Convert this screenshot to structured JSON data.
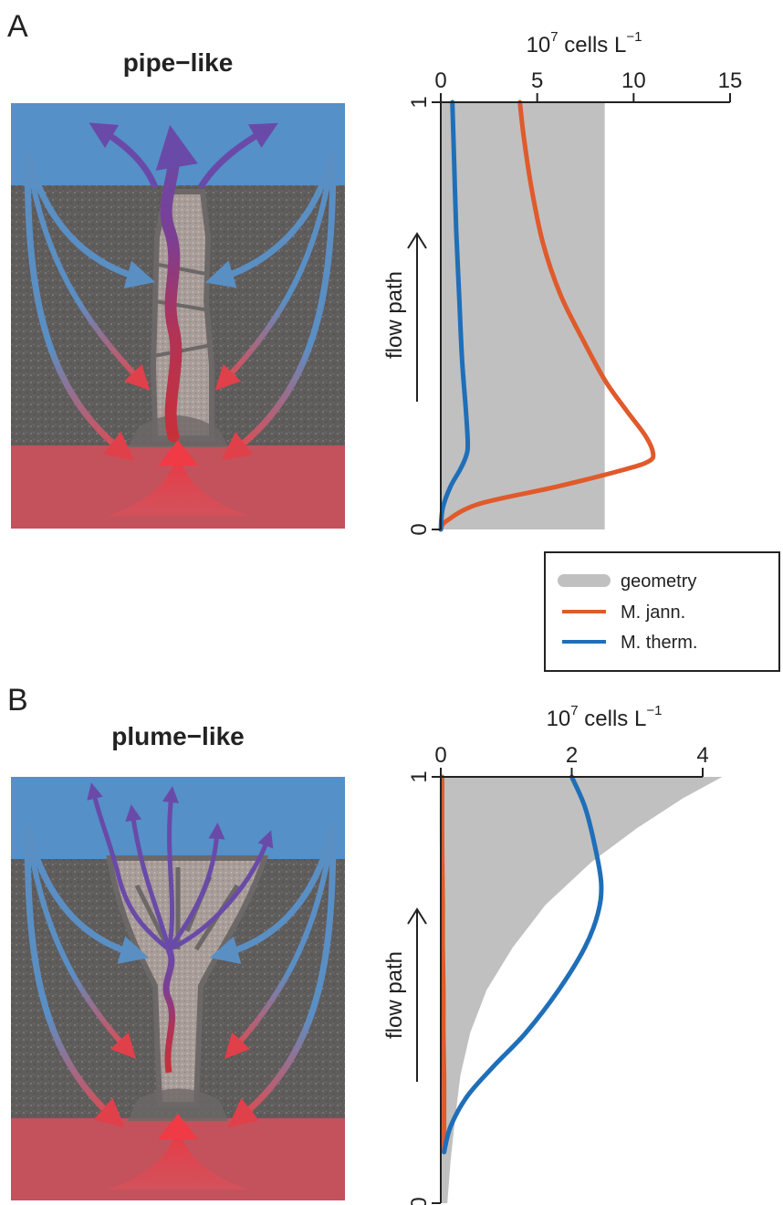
{
  "panels": [
    {
      "letter": "A",
      "title": "pipe−like",
      "flow_label": "flow path"
    },
    {
      "letter": "B",
      "title": "plume−like",
      "flow_label": "flow path"
    }
  ],
  "legend": {
    "items": [
      {
        "label": "geometry",
        "color": "#c0c0c0"
      },
      {
        "label": "M. jann.",
        "color": "#e05a2b"
      },
      {
        "label": "M. therm.",
        "color": "#1f6fb8"
      }
    ]
  },
  "colors": {
    "seawater": "#5590c8",
    "rock": "#5f5c5c",
    "hot_zone": "#c3525c",
    "geometry": "#c0c0c0",
    "m_jann": "#e05a2b",
    "m_therm": "#1f6fb8"
  },
  "chart_data": [
    {
      "type": "line",
      "panel": "A",
      "title": "",
      "xlabel": "10^7 cells L^-1",
      "xlabel_base": "10",
      "xlabel_exp": "7",
      "xlabel_unit": "cells L",
      "xlabel_unit_exp": "−1",
      "ylabel": "flow path",
      "xlim": [
        0,
        15
      ],
      "ylim": [
        0,
        1
      ],
      "xticks": [
        0,
        5,
        10,
        15
      ],
      "yticks": [
        0,
        1
      ],
      "series": [
        {
          "name": "geometry",
          "kind": "area",
          "x": [
            8.5,
            8.5,
            8.5,
            8.5,
            8.5,
            8.5
          ],
          "y": [
            0,
            0.2,
            0.4,
            0.6,
            0.8,
            1.0
          ]
        },
        {
          "name": "M. jann.",
          "kind": "line",
          "x": [
            0.0,
            0.3,
            2.0,
            6.0,
            9.5,
            10.8,
            11.0,
            10.6,
            9.6,
            8.5,
            7.3,
            6.2,
            5.3,
            4.7,
            4.3,
            4.1
          ],
          "y": [
            0.0,
            0.02,
            0.06,
            0.1,
            0.14,
            0.16,
            0.18,
            0.22,
            0.28,
            0.35,
            0.45,
            0.55,
            0.67,
            0.8,
            0.92,
            1.0
          ]
        },
        {
          "name": "M. therm.",
          "kind": "line",
          "x": [
            0.0,
            0.1,
            0.5,
            1.0,
            1.3,
            1.4,
            1.3,
            1.1,
            0.95,
            0.8,
            0.7,
            0.6
          ],
          "y": [
            0.0,
            0.05,
            0.1,
            0.14,
            0.17,
            0.2,
            0.28,
            0.4,
            0.55,
            0.7,
            0.85,
            1.0
          ]
        }
      ]
    },
    {
      "type": "line",
      "panel": "B",
      "title": "",
      "xlabel": "10^7 cells L^-1",
      "xlabel_base": "10",
      "xlabel_exp": "7",
      "xlabel_unit": "cells L",
      "xlabel_unit_exp": "−1",
      "ylabel": "flow path",
      "xlim": [
        0,
        4
      ],
      "ylim": [
        0,
        1
      ],
      "xticks": [
        0,
        2,
        4
      ],
      "yticks": [
        0,
        1
      ],
      "series": [
        {
          "name": "geometry",
          "kind": "area",
          "x": [
            0.1,
            0.15,
            0.22,
            0.3,
            0.45,
            0.7,
            1.1,
            1.6,
            2.3,
            3.0,
            3.7,
            4.3
          ],
          "y": [
            0.0,
            0.1,
            0.2,
            0.3,
            0.4,
            0.5,
            0.6,
            0.7,
            0.8,
            0.88,
            0.95,
            1.0
          ]
        },
        {
          "name": "M. jann.",
          "kind": "line",
          "x": [
            0.05,
            0.05,
            0.05,
            0.04,
            0.04,
            0.03,
            0.03,
            0.02,
            0.02
          ],
          "y": [
            0.12,
            0.2,
            0.3,
            0.4,
            0.5,
            0.6,
            0.7,
            0.85,
            1.0
          ]
        },
        {
          "name": "M. therm.",
          "kind": "line",
          "x": [
            0.05,
            0.15,
            0.4,
            0.8,
            1.3,
            1.8,
            2.2,
            2.4,
            2.45,
            2.35,
            2.2,
            2.0
          ],
          "y": [
            0.12,
            0.18,
            0.25,
            0.32,
            0.4,
            0.5,
            0.6,
            0.68,
            0.75,
            0.84,
            0.93,
            1.0
          ]
        }
      ]
    }
  ]
}
